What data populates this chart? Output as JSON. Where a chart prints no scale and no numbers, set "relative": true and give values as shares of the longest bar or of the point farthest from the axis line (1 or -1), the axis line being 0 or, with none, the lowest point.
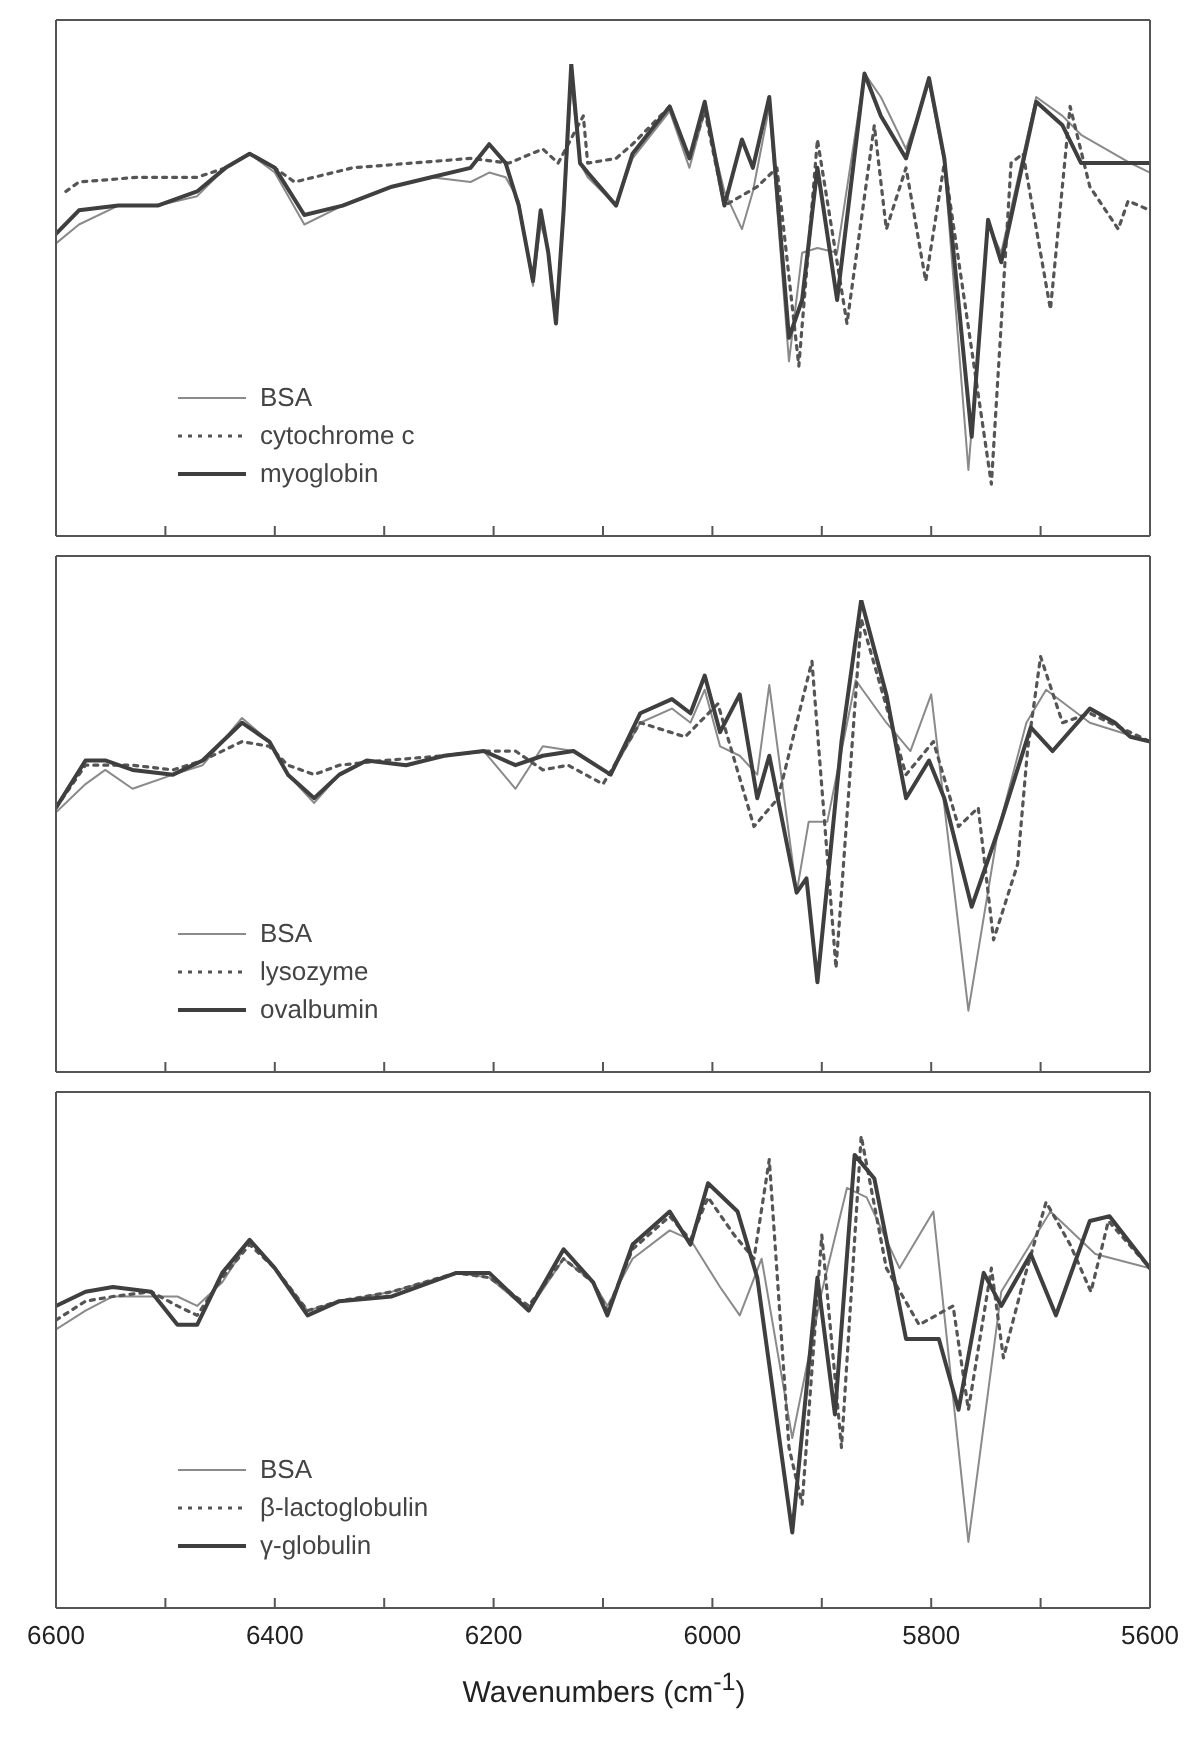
{
  "chart_data": [
    {
      "type": "line",
      "relative": true,
      "xlim": [
        6600,
        5600
      ],
      "xticks": [
        6600,
        {
          "value": 6500,
          "label": null
        },
        6400,
        {
          "value": 6300,
          "label": null
        },
        6200,
        {
          "value": 6100,
          "label": null
        },
        6000,
        {
          "value": 5900,
          "label": null
        },
        5800,
        {
          "value": 5700,
          "label": null
        },
        5600
      ],
      "tick_labels": false,
      "legend": "bottom left",
      "series": [
        {
          "name": "BSA",
          "color": "#8a8a8a",
          "line_style": "solid",
          "x": [
            6600,
            6579,
            6543,
            6507,
            6471,
            6445,
            6423,
            6400,
            6373,
            6338,
            6293,
            6257,
            6221,
            6204,
            6189,
            6177,
            6164,
            6157,
            6150,
            6143,
            6136,
            6129,
            6121,
            6114,
            6088,
            6073,
            6039,
            6021,
            6007,
            5989,
            5973,
            5963,
            5948,
            5930,
            5918,
            5904,
            5886,
            5861,
            5846,
            5823,
            5802,
            5788,
            5766,
            5748,
            5736,
            5704,
            5680,
            5663,
            5618,
            5600
          ],
          "values": [
            0.62,
            0.66,
            0.7,
            0.7,
            0.72,
            0.78,
            0.81,
            0.77,
            0.66,
            0.7,
            0.74,
            0.76,
            0.75,
            0.77,
            0.76,
            0.71,
            0.53,
            0.66,
            0.61,
            0.46,
            0.67,
            0.96,
            0.79,
            0.76,
            0.7,
            0.8,
            0.9,
            0.78,
            0.9,
            0.73,
            0.65,
            0.73,
            0.91,
            0.37,
            0.6,
            0.61,
            0.6,
            0.98,
            0.93,
            0.82,
            0.96,
            0.79,
            0.14,
            0.66,
            0.6,
            0.93,
            0.89,
            0.85,
            0.79,
            0.77
          ]
        },
        {
          "name": "cytochrome c",
          "color": "#555555",
          "line_style": "dotted",
          "x": [
            6591,
            6579,
            6525,
            6471,
            6445,
            6423,
            6400,
            6382,
            6329,
            6275,
            6221,
            6186,
            6155,
            6141,
            6118,
            6114,
            6088,
            6073,
            6039,
            6021,
            6007,
            5989,
            5959,
            5941,
            5921,
            5904,
            5877,
            5852,
            5841,
            5823,
            5805,
            5788,
            5745,
            5727,
            5716,
            5691,
            5673,
            5655,
            5629,
            5620,
            5600
          ],
          "values": [
            0.73,
            0.75,
            0.76,
            0.76,
            0.78,
            0.81,
            0.78,
            0.75,
            0.78,
            0.79,
            0.8,
            0.79,
            0.82,
            0.79,
            0.89,
            0.79,
            0.8,
            0.83,
            0.91,
            0.8,
            0.9,
            0.7,
            0.74,
            0.78,
            0.36,
            0.84,
            0.45,
            0.87,
            0.65,
            0.78,
            0.54,
            0.79,
            0.11,
            0.79,
            0.81,
            0.48,
            0.91,
            0.74,
            0.65,
            0.71,
            0.69
          ]
        },
        {
          "name": "myoglobin",
          "color": "#3f3f3f",
          "line_style": "solid",
          "x": [
            6600,
            6579,
            6543,
            6507,
            6471,
            6445,
            6423,
            6400,
            6373,
            6338,
            6293,
            6257,
            6221,
            6204,
            6189,
            6177,
            6164,
            6157,
            6150,
            6143,
            6136,
            6129,
            6121,
            6114,
            6088,
            6073,
            6039,
            6021,
            6007,
            5989,
            5973,
            5963,
            5948,
            5930,
            5918,
            5904,
            5886,
            5861,
            5846,
            5823,
            5802,
            5788,
            5763,
            5748,
            5736,
            5704,
            5680,
            5663,
            5618,
            5600
          ],
          "values": [
            0.64,
            0.69,
            0.7,
            0.7,
            0.73,
            0.78,
            0.81,
            0.78,
            0.68,
            0.7,
            0.74,
            0.76,
            0.78,
            0.83,
            0.79,
            0.7,
            0.54,
            0.69,
            0.6,
            0.45,
            0.69,
            1.0,
            0.79,
            0.77,
            0.7,
            0.81,
            0.91,
            0.8,
            0.92,
            0.7,
            0.84,
            0.78,
            0.93,
            0.42,
            0.5,
            0.78,
            0.5,
            0.98,
            0.89,
            0.8,
            0.97,
            0.8,
            0.21,
            0.67,
            0.58,
            0.92,
            0.87,
            0.79,
            0.79,
            0.79
          ]
        }
      ]
    },
    {
      "type": "line",
      "relative": true,
      "xlim": [
        6600,
        5600
      ],
      "xticks": [
        6600,
        {
          "value": 6500,
          "label": null
        },
        6400,
        {
          "value": 6300,
          "label": null
        },
        6200,
        {
          "value": 6100,
          "label": null
        },
        6000,
        {
          "value": 5900,
          "label": null
        },
        5800,
        {
          "value": 5700,
          "label": null
        },
        5600
      ],
      "tick_labels": false,
      "legend": "bottom left",
      "series": [
        {
          "name": "BSA",
          "color": "#8a8a8a",
          "line_style": "solid",
          "x": [
            6600,
            6573,
            6555,
            6530,
            6493,
            6466,
            6430,
            6405,
            6388,
            6364,
            6341,
            6316,
            6280,
            6245,
            6209,
            6180,
            6155,
            6127,
            6093,
            6066,
            6037,
            6020,
            6007,
            5993,
            5975,
            5959,
            5948,
            5923,
            5912,
            5895,
            5869,
            5841,
            5819,
            5800,
            5766,
            5739,
            5713,
            5695,
            5655,
            5600
          ],
          "values": [
            0.55,
            0.61,
            0.64,
            0.6,
            0.63,
            0.65,
            0.75,
            0.7,
            0.63,
            0.57,
            0.63,
            0.66,
            0.65,
            0.67,
            0.68,
            0.6,
            0.69,
            0.68,
            0.63,
            0.74,
            0.77,
            0.74,
            0.81,
            0.69,
            0.67,
            0.63,
            0.82,
            0.38,
            0.53,
            0.53,
            0.83,
            0.74,
            0.68,
            0.8,
            0.13,
            0.51,
            0.74,
            0.81,
            0.74,
            0.7
          ]
        },
        {
          "name": "lysozyme",
          "color": "#555555",
          "line_style": "dotted",
          "x": [
            6600,
            6573,
            6530,
            6493,
            6466,
            6430,
            6405,
            6388,
            6364,
            6341,
            6300,
            6245,
            6209,
            6180,
            6155,
            6132,
            6100,
            6066,
            6025,
            5995,
            5962,
            5940,
            5909,
            5887,
            5864,
            5823,
            5798,
            5775,
            5757,
            5743,
            5721,
            5712,
            5700,
            5680,
            5655,
            5600
          ],
          "values": [
            0.56,
            0.65,
            0.65,
            0.64,
            0.66,
            0.7,
            0.69,
            0.65,
            0.63,
            0.65,
            0.66,
            0.67,
            0.68,
            0.68,
            0.64,
            0.65,
            0.61,
            0.74,
            0.71,
            0.78,
            0.52,
            0.58,
            0.87,
            0.22,
            0.96,
            0.63,
            0.7,
            0.52,
            0.56,
            0.28,
            0.44,
            0.68,
            0.88,
            0.74,
            0.76,
            0.7
          ]
        },
        {
          "name": "ovalbumin",
          "color": "#3f3f3f",
          "line_style": "solid",
          "x": [
            6600,
            6573,
            6555,
            6530,
            6493,
            6466,
            6430,
            6405,
            6388,
            6364,
            6341,
            6316,
            6280,
            6245,
            6209,
            6180,
            6155,
            6127,
            6093,
            6066,
            6037,
            6020,
            6007,
            5993,
            5975,
            5959,
            5948,
            5923,
            5914,
            5904,
            5882,
            5864,
            5841,
            5823,
            5802,
            5788,
            5763,
            5739,
            5709,
            5689,
            5655,
            5632,
            5618,
            5600
          ],
          "values": [
            0.56,
            0.66,
            0.66,
            0.64,
            0.63,
            0.66,
            0.74,
            0.7,
            0.63,
            0.58,
            0.63,
            0.66,
            0.65,
            0.67,
            0.68,
            0.65,
            0.67,
            0.68,
            0.63,
            0.76,
            0.79,
            0.76,
            0.84,
            0.72,
            0.8,
            0.58,
            0.67,
            0.38,
            0.41,
            0.19,
            0.7,
            1.0,
            0.8,
            0.58,
            0.66,
            0.58,
            0.35,
            0.51,
            0.73,
            0.68,
            0.77,
            0.74,
            0.71,
            0.7
          ]
        }
      ]
    },
    {
      "type": "line",
      "relative": true,
      "xlim": [
        6600,
        5600
      ],
      "xticks": [
        6600,
        {
          "value": 6500,
          "label": null
        },
        6400,
        {
          "value": 6300,
          "label": null
        },
        6200,
        {
          "value": 6100,
          "label": null
        },
        6000,
        {
          "value": 5900,
          "label": null
        },
        5800,
        {
          "value": 5700,
          "label": null
        },
        5600
      ],
      "tick_labels": "x",
      "xlabel": "Wavenumbers (cm$^{-1}$)",
      "legend": "bottom left",
      "series": [
        {
          "name": "BSA",
          "color": "#8a8a8a",
          "line_style": "solid",
          "x": [
            6600,
            6573,
            6548,
            6513,
            6489,
            6471,
            6448,
            6423,
            6400,
            6370,
            6341,
            6293,
            6234,
            6204,
            6168,
            6136,
            6109,
            6096,
            6073,
            6039,
            6020,
            5993,
            5975,
            5955,
            5927,
            5900,
            5877,
            5859,
            5829,
            5798,
            5766,
            5736,
            5691,
            5650,
            5600
          ],
          "values": [
            0.59,
            0.63,
            0.66,
            0.66,
            0.66,
            0.64,
            0.69,
            0.78,
            0.72,
            0.63,
            0.65,
            0.67,
            0.71,
            0.7,
            0.63,
            0.74,
            0.69,
            0.64,
            0.74,
            0.8,
            0.78,
            0.68,
            0.62,
            0.74,
            0.36,
            0.67,
            0.89,
            0.87,
            0.72,
            0.84,
            0.14,
            0.67,
            0.84,
            0.75,
            0.72
          ]
        },
        {
          "name": "β-lactoglobulin",
          "color": "#555555",
          "line_style": "dotted",
          "x": [
            6600,
            6573,
            6548,
            6513,
            6489,
            6471,
            6448,
            6423,
            6400,
            6370,
            6341,
            6293,
            6234,
            6204,
            6168,
            6136,
            6109,
            6096,
            6073,
            6039,
            6020,
            6004,
            5980,
            5962,
            5948,
            5930,
            5918,
            5900,
            5882,
            5864,
            5841,
            5811,
            5780,
            5766,
            5745,
            5734,
            5716,
            5695,
            5673,
            5654,
            5638,
            5600
          ],
          "values": [
            0.61,
            0.65,
            0.66,
            0.67,
            0.64,
            0.62,
            0.7,
            0.77,
            0.72,
            0.63,
            0.65,
            0.67,
            0.71,
            0.7,
            0.64,
            0.74,
            0.69,
            0.63,
            0.76,
            0.83,
            0.78,
            0.87,
            0.79,
            0.74,
            0.95,
            0.34,
            0.22,
            0.79,
            0.34,
            1.0,
            0.72,
            0.6,
            0.64,
            0.42,
            0.72,
            0.53,
            0.69,
            0.86,
            0.77,
            0.67,
            0.82,
            0.72
          ]
        },
        {
          "name": "γ-globulin",
          "color": "#3f3f3f",
          "line_style": "solid",
          "x": [
            6600,
            6573,
            6548,
            6513,
            6489,
            6471,
            6448,
            6423,
            6400,
            6370,
            6341,
            6293,
            6234,
            6204,
            6168,
            6136,
            6109,
            6096,
            6073,
            6039,
            6020,
            6004,
            5977,
            5959,
            5927,
            5904,
            5888,
            5870,
            5852,
            5823,
            5793,
            5775,
            5752,
            5736,
            5709,
            5686,
            5655,
            5637,
            5600
          ],
          "values": [
            0.64,
            0.67,
            0.68,
            0.67,
            0.6,
            0.6,
            0.71,
            0.78,
            0.72,
            0.62,
            0.65,
            0.66,
            0.71,
            0.71,
            0.63,
            0.76,
            0.69,
            0.62,
            0.77,
            0.84,
            0.77,
            0.9,
            0.84,
            0.7,
            0.16,
            0.7,
            0.41,
            0.96,
            0.91,
            0.57,
            0.57,
            0.42,
            0.71,
            0.64,
            0.75,
            0.62,
            0.82,
            0.83,
            0.72
          ]
        }
      ]
    }
  ]
}
